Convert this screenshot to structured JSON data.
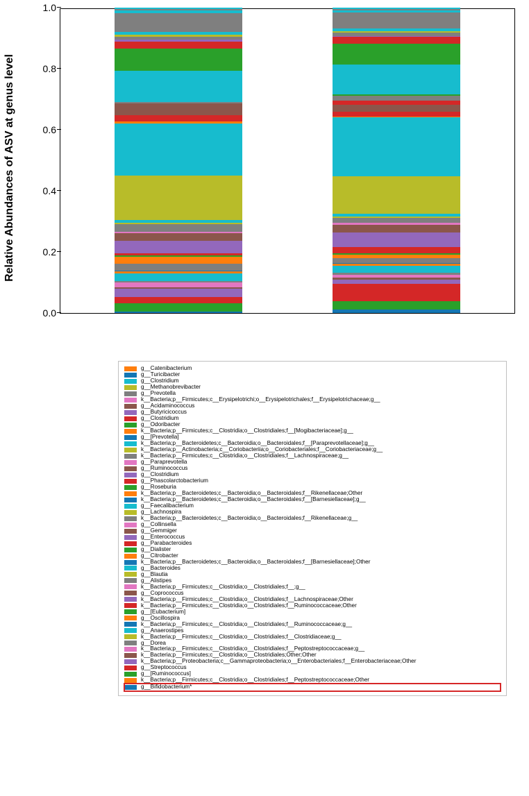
{
  "chart": {
    "type": "stacked-bar",
    "ylabel": "Relative Abundances of ASV at genus level",
    "yaxis": {
      "min": 0.0,
      "max": 1.0,
      "ticks": [
        0.0,
        0.2,
        0.4,
        0.6,
        0.8,
        1.0
      ],
      "tick_labels": [
        "0.0",
        "0.2",
        "0.4",
        "0.6",
        "0.8",
        "1.0"
      ]
    },
    "plot_border_color": "#000000",
    "background_color": "#ffffff",
    "bar_left": {
      "segments": [
        {
          "color": "#1477b4",
          "value": 0.004
        },
        {
          "color": "#2aa02a",
          "value": 0.027
        },
        {
          "color": "#d42727",
          "value": 0.02
        },
        {
          "color": "#9368bc",
          "value": 0.025
        },
        {
          "color": "#8b564b",
          "value": 0.006
        },
        {
          "color": "#e277c2",
          "value": 0.014
        },
        {
          "color": "#7f7f7f",
          "value": 0.006
        },
        {
          "color": "#17bcce",
          "value": 0.024
        },
        {
          "color": "#ff7e0d",
          "value": 0.005
        },
        {
          "color": "#1477b4",
          "value": 0.004
        },
        {
          "color": "#7f7f7f",
          "value": 0.02
        },
        {
          "color": "#ff7e0d",
          "value": 0.022
        },
        {
          "color": "#2aa02a",
          "value": 0.005
        },
        {
          "color": "#d42727",
          "value": 0.006
        },
        {
          "color": "#9368bc",
          "value": 0.04
        },
        {
          "color": "#8b564b",
          "value": 0.025
        },
        {
          "color": "#e277c2",
          "value": 0.005
        },
        {
          "color": "#7f7f7f",
          "value": 0.024
        },
        {
          "color": "#b8bc29",
          "value": 0.003
        },
        {
          "color": "#17bcce",
          "value": 0.01
        },
        {
          "color": "#b8bc29",
          "value": 0.14
        },
        {
          "color": "#17bcce",
          "value": 0.165
        },
        {
          "color": "#ff7e0d",
          "value": 0.006
        },
        {
          "color": "#d42727",
          "value": 0.02
        },
        {
          "color": "#8b564b",
          "value": 0.037
        },
        {
          "color": "#7f7f7f",
          "value": 0.006
        },
        {
          "color": "#17bcce",
          "value": 0.097
        },
        {
          "color": "#2aa02a",
          "value": 0.07
        },
        {
          "color": "#d42727",
          "value": 0.024
        },
        {
          "color": "#9368bc",
          "value": 0.005
        },
        {
          "color": "#7f7f7f",
          "value": 0.01
        },
        {
          "color": "#b8bc29",
          "value": 0.005
        },
        {
          "color": "#17bcce",
          "value": 0.01
        },
        {
          "color": "#7f7f7f",
          "value": 0.06
        },
        {
          "color": "#17bcce",
          "value": 0.008
        },
        {
          "color": "#7f7f7f",
          "value": 0.005
        },
        {
          "color": "#17bcce",
          "value": 0.003
        }
      ]
    },
    "bar_right": {
      "segments": [
        {
          "color": "#1477b4",
          "value": 0.012
        },
        {
          "color": "#2aa02a",
          "value": 0.027
        },
        {
          "color": "#d42727",
          "value": 0.055
        },
        {
          "color": "#9368bc",
          "value": 0.014
        },
        {
          "color": "#8b564b",
          "value": 0.006
        },
        {
          "color": "#e277c2",
          "value": 0.01
        },
        {
          "color": "#7f7f7f",
          "value": 0.006
        },
        {
          "color": "#17bcce",
          "value": 0.023
        },
        {
          "color": "#ff7e0d",
          "value": 0.006
        },
        {
          "color": "#1477b4",
          "value": 0.004
        },
        {
          "color": "#7f7f7f",
          "value": 0.015
        },
        {
          "color": "#ff7e0d",
          "value": 0.012
        },
        {
          "color": "#2aa02a",
          "value": 0.004
        },
        {
          "color": "#d42727",
          "value": 0.02
        },
        {
          "color": "#9368bc",
          "value": 0.048
        },
        {
          "color": "#8b564b",
          "value": 0.025
        },
        {
          "color": "#e277c2",
          "value": 0.005
        },
        {
          "color": "#7f7f7f",
          "value": 0.017
        },
        {
          "color": "#b8bc29",
          "value": 0.003
        },
        {
          "color": "#17bcce",
          "value": 0.01
        },
        {
          "color": "#b8bc29",
          "value": 0.122
        },
        {
          "color": "#17bcce",
          "value": 0.19
        },
        {
          "color": "#ff7e0d",
          "value": 0.004
        },
        {
          "color": "#d42727",
          "value": 0.016
        },
        {
          "color": "#8b564b",
          "value": 0.022
        },
        {
          "color": "#d42727",
          "value": 0.012
        },
        {
          "color": "#7f7f7f",
          "value": 0.016
        },
        {
          "color": "#2aa02a",
          "value": 0.006
        },
        {
          "color": "#17bcce",
          "value": 0.095
        },
        {
          "color": "#2aa02a",
          "value": 0.068
        },
        {
          "color": "#d42727",
          "value": 0.022
        },
        {
          "color": "#9368bc",
          "value": 0.004
        },
        {
          "color": "#7f7f7f",
          "value": 0.01
        },
        {
          "color": "#b8bc29",
          "value": 0.005
        },
        {
          "color": "#17bcce",
          "value": 0.01
        },
        {
          "color": "#7f7f7f",
          "value": 0.05
        },
        {
          "color": "#17bcce",
          "value": 0.008
        },
        {
          "color": "#7f7f7f",
          "value": 0.005
        },
        {
          "color": "#17bcce",
          "value": 0.003
        }
      ]
    }
  },
  "legend": {
    "border_color": "#c0c0c0",
    "highlight_color": "#d62728",
    "label_fontsize": 8.2,
    "items": [
      {
        "color": "#ff7e0d",
        "label": "g__Catenibacterium"
      },
      {
        "color": "#1477b4",
        "label": "g__Turicibacter"
      },
      {
        "color": "#17bcce",
        "label": "g__Clostridium"
      },
      {
        "color": "#b8bc29",
        "label": "g__Methanobrevibacter"
      },
      {
        "color": "#7f7f7f",
        "label": "g__Prevotella"
      },
      {
        "color": "#e277c2",
        "label": "k__Bacteria;p__Firmicutes;c__Erysipelotrichi;o__Erysipelotrichales;f__Erysipelotrichaceae;g__"
      },
      {
        "color": "#8b564b",
        "label": "g__Acidaminococcus"
      },
      {
        "color": "#9368bc",
        "label": "g__Butyricicoccus"
      },
      {
        "color": "#d42727",
        "label": "g__Clostridium"
      },
      {
        "color": "#2aa02a",
        "label": "g__Odoribacter"
      },
      {
        "color": "#ff7e0d",
        "label": "k__Bacteria;p__Firmicutes;c__Clostridia;o__Clostridiales;f__[Mogibacteriaceae];g__"
      },
      {
        "color": "#1477b4",
        "label": "g__[Prevotella]"
      },
      {
        "color": "#17bcce",
        "label": "k__Bacteria;p__Bacteroidetes;c__Bacteroidia;o__Bacteroidales;f__[Paraprevotellaceae];g__"
      },
      {
        "color": "#b8bc29",
        "label": "k__Bacteria;p__Actinobacteria;c__Coriobacteriia;o__Coriobacteriales;f__Coriobacteriaceae;g__"
      },
      {
        "color": "#7f7f7f",
        "label": "k__Bacteria;p__Firmicutes;c__Clostridia;o__Clostridiales;f__Lachnospiraceae;g__"
      },
      {
        "color": "#e277c2",
        "label": "g__Paraprevotella"
      },
      {
        "color": "#8b564b",
        "label": "g__Ruminococcus"
      },
      {
        "color": "#9368bc",
        "label": "g__Clostridium"
      },
      {
        "color": "#d42727",
        "label": "g__Phascolarctobacterium"
      },
      {
        "color": "#2aa02a",
        "label": "g__Roseburia"
      },
      {
        "color": "#ff7e0d",
        "label": "k__Bacteria;p__Bacteroidetes;c__Bacteroidia;o__Bacteroidales;f__Rikenellaceae;Other"
      },
      {
        "color": "#1477b4",
        "label": "k__Bacteria;p__Bacteroidetes;c__Bacteroidia;o__Bacteroidales;f__[Barnesiellaceae];g__"
      },
      {
        "color": "#17bcce",
        "label": "g__Faecalibacterium"
      },
      {
        "color": "#b8bc29",
        "label": "g__Lachnospira"
      },
      {
        "color": "#7f7f7f",
        "label": "k__Bacteria;p__Bacteroidetes;c__Bacteroidia;o__Bacteroidales;f__Rikenellaceae;g__"
      },
      {
        "color": "#e277c2",
        "label": "g__Collinsella"
      },
      {
        "color": "#8b564b",
        "label": "g__Gemmiger"
      },
      {
        "color": "#9368bc",
        "label": "g__Enterococcus"
      },
      {
        "color": "#d42727",
        "label": "g__Parabacteroides"
      },
      {
        "color": "#2aa02a",
        "label": "g__Dialister"
      },
      {
        "color": "#ff7e0d",
        "label": "g__Citrobacter"
      },
      {
        "color": "#1477b4",
        "label": "k__Bacteria;p__Bacteroidetes;c__Bacteroidia;o__Bacteroidales;f__[Barnesiellaceae];Other"
      },
      {
        "color": "#17bcce",
        "label": "g__Bacteroides"
      },
      {
        "color": "#b8bc29",
        "label": "g__Blautia"
      },
      {
        "color": "#7f7f7f",
        "label": "g__Alistipes"
      },
      {
        "color": "#e277c2",
        "label": "k__Bacteria;p__Firmicutes;c__Clostridia;o__Clostridiales;f__;g__"
      },
      {
        "color": "#8b564b",
        "label": "g__Coprococcus"
      },
      {
        "color": "#9368bc",
        "label": "k__Bacteria;p__Firmicutes;c__Clostridia;o__Clostridiales;f__Lachnospiraceae;Other"
      },
      {
        "color": "#d42727",
        "label": "k__Bacteria;p__Firmicutes;c__Clostridia;o__Clostridiales;f__Ruminococcaceae;Other"
      },
      {
        "color": "#2aa02a",
        "label": "g__[Eubacterium]"
      },
      {
        "color": "#ff7e0d",
        "label": "g__Oscillospira"
      },
      {
        "color": "#1477b4",
        "label": "k__Bacteria;p__Firmicutes;c__Clostridia;o__Clostridiales;f__Ruminococcaceae;g__"
      },
      {
        "color": "#17bcce",
        "label": "g__Anaerostipes"
      },
      {
        "color": "#b8bc29",
        "label": "k__Bacteria;p__Firmicutes;c__Clostridia;o__Clostridiales;f__Clostridiaceae;g__"
      },
      {
        "color": "#7f7f7f",
        "label": "g__Dorea"
      },
      {
        "color": "#e277c2",
        "label": "k__Bacteria;p__Firmicutes;c__Clostridia;o__Clostridiales;f__Peptostreptococcaceae;g__"
      },
      {
        "color": "#8b564b",
        "label": "k__Bacteria;p__Firmicutes;c__Clostridia;o__Clostridiales;Other;Other"
      },
      {
        "color": "#9368bc",
        "label": "k__Bacteria;p__Proteobacteria;c__Gammaproteobacteria;o__Enterobacteriales;f__Enterobacteriaceae;Other"
      },
      {
        "color": "#d42727",
        "label": "g__Streptococcus"
      },
      {
        "color": "#2aa02a",
        "label": "g__[Ruminococcus]"
      },
      {
        "color": "#ff7e0d",
        "label": "k__Bacteria;p__Firmicutes;c__Clostridia;o__Clostridiales;f__Peptostreptococcaceae;Other"
      },
      {
        "color": "#1477b4",
        "label": "g__Bifidobacterium*",
        "highlight": true
      }
    ]
  }
}
